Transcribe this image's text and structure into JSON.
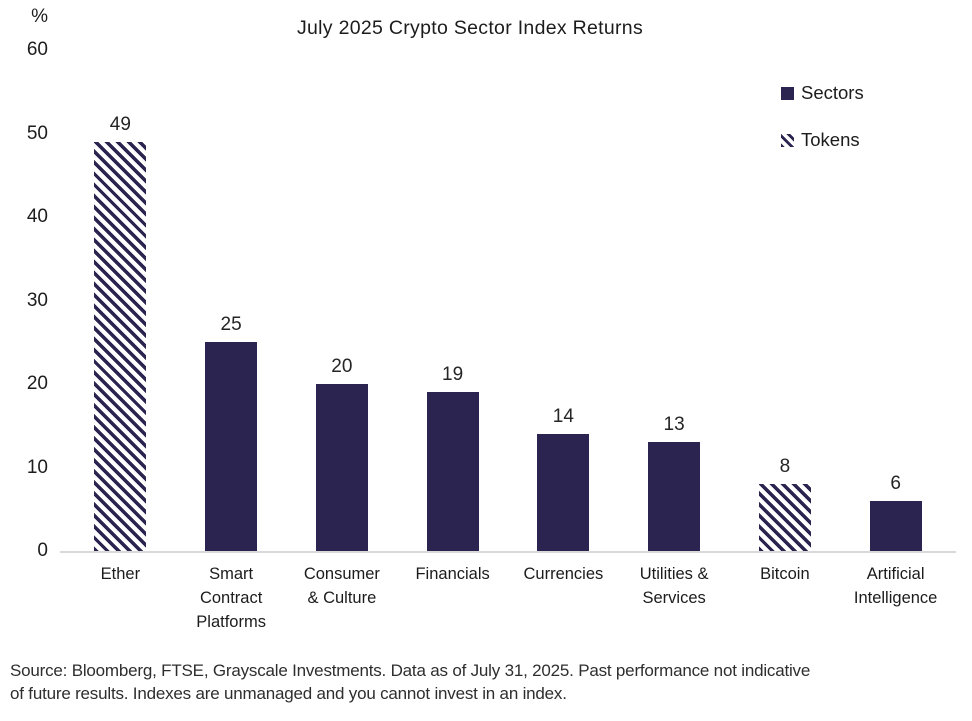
{
  "title": "July 2025 Crypto Sector Index Returns",
  "y_axis": {
    "unit": "%",
    "ticks": [
      60,
      50,
      40,
      30,
      20,
      10,
      0
    ]
  },
  "legend": {
    "items": [
      {
        "label": "Sectors",
        "marker": "solid-square"
      },
      {
        "label": "Tokens",
        "marker": "hatched-square"
      }
    ]
  },
  "footer": {
    "lines": [
      "Source: Bloomberg, FTSE, Grayscale Investments. Data as of July 31, 2025. Past performance not indicative",
      "of future results. Indexes are unmanaged and you cannot invest in an index."
    ]
  },
  "colors": {
    "bar_navy": "#2b2450",
    "axis_line": "#d9d9d9",
    "title_text": "#1c1c1c",
    "footer_text": "#2e2e2e"
  },
  "chart_data": {
    "type": "bar",
    "title": "July 2025 Crypto Sector Index Returns",
    "categories": [
      "Ether",
      "Smart Contract Platforms",
      "Consumer & Culture",
      "Financials",
      "Currencies",
      "Utilities & Services",
      "Bitcoin",
      "Artificial Intelligence"
    ],
    "category_label_lines": [
      [
        "Ether"
      ],
      [
        "Smart",
        "Contract",
        "Platforms"
      ],
      [
        "Consumer",
        "& Culture"
      ],
      [
        "Financials"
      ],
      [
        "Currencies"
      ],
      [
        "Utilities &",
        "Services"
      ],
      [
        "Bitcoin"
      ],
      [
        "Artificial",
        "Intelligence"
      ]
    ],
    "values": [
      49,
      25,
      20,
      19,
      14,
      13,
      8,
      6
    ],
    "bar_patterns": [
      "hatched",
      "solid",
      "solid",
      "solid",
      "solid",
      "solid",
      "hatched",
      "solid"
    ],
    "pattern_legend": {
      "solid": "Sectors",
      "hatched": "Tokens"
    },
    "xlabel": "",
    "ylabel": "%",
    "ylim": [
      0,
      60
    ],
    "y_ticks": [
      0,
      10,
      20,
      30,
      40,
      50,
      60
    ],
    "grid": false,
    "legend_position": "top-right",
    "source_note": "Source: Bloomberg, FTSE, Grayscale Investments. Data as of July 31, 2025. Past performance not indicative of future results. Indexes are unmanaged and you cannot invest in an index."
  }
}
